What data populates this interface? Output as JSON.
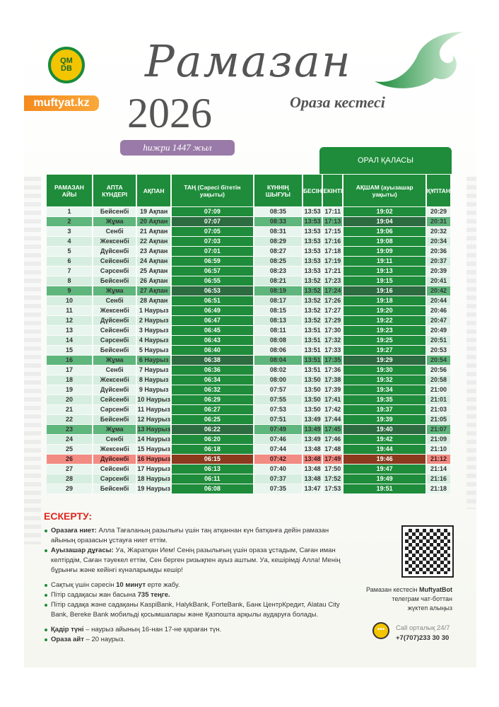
{
  "header": {
    "logo_text": "QMDB",
    "site": "muftyat.kz",
    "title": "Рамазан",
    "year": "2026",
    "subtitle": "Ораза кестесі",
    "hijri": "һижри 1447 жыл",
    "city": "ОРАЛ ҚАЛАСЫ"
  },
  "colors": {
    "green": "#1e8c3a",
    "friday": "#5fb67c",
    "highlight": "#f28b82",
    "accent": "#e0261f"
  },
  "table": {
    "columns": [
      "РАМАЗАН АЙЫ",
      "АПТА КҮНДЕРІ",
      "АҚПАН",
      "ТАҢ (Сәресі бітетін уақыты)",
      "КҮННІҢ ШЫҒУЫ",
      "БЕСІН",
      "ЕКІНТІ",
      "АҚШАМ (ауызашар уақыты)",
      "ҚҰПТАН"
    ],
    "rows": [
      [
        "1",
        "Бейсенбі",
        "19 Ақпан",
        "07:09",
        "08:35",
        "13:53",
        "17:11",
        "19:02",
        "20:29"
      ],
      [
        "2",
        "Жұма",
        "20 Ақпан",
        "07:07",
        "08:33",
        "13:53",
        "17:13",
        "19:04",
        "20:31"
      ],
      [
        "3",
        "Сенбі",
        "21 Ақпан",
        "07:05",
        "08:31",
        "13:53",
        "17:15",
        "19:06",
        "20:32"
      ],
      [
        "4",
        "Жексенбі",
        "22 Ақпан",
        "07:03",
        "08:29",
        "13:53",
        "17:16",
        "19:08",
        "20:34"
      ],
      [
        "5",
        "Дүйсенбі",
        "23 Ақпан",
        "07:01",
        "08:27",
        "13:53",
        "17:18",
        "19:09",
        "20:36"
      ],
      [
        "6",
        "Сейсенбі",
        "24 Ақпан",
        "06:59",
        "08:25",
        "13:53",
        "17:19",
        "19:11",
        "20:37"
      ],
      [
        "7",
        "Сәрсенбі",
        "25 Ақпан",
        "06:57",
        "08:23",
        "13:53",
        "17:21",
        "19:13",
        "20:39"
      ],
      [
        "8",
        "Бейсенбі",
        "26 Ақпан",
        "06:55",
        "08:21",
        "13:52",
        "17:23",
        "19:15",
        "20:41"
      ],
      [
        "9",
        "Жұма",
        "27 Ақпан",
        "06:53",
        "08:19",
        "13:52",
        "17:24",
        "19:16",
        "20:42"
      ],
      [
        "10",
        "Сенбі",
        "28 Ақпан",
        "06:51",
        "08:17",
        "13:52",
        "17:26",
        "19:18",
        "20:44"
      ],
      [
        "11",
        "Жексенбі",
        "1 Наурыз",
        "06:49",
        "08:15",
        "13:52",
        "17:27",
        "19:20",
        "20:46"
      ],
      [
        "12",
        "Дүйсенбі",
        "2 Наурыз",
        "06:47",
        "08:13",
        "13:52",
        "17:29",
        "19:22",
        "20:47"
      ],
      [
        "13",
        "Сейсенбі",
        "3 Наурыз",
        "06:45",
        "08:11",
        "13:51",
        "17:30",
        "19:23",
        "20:49"
      ],
      [
        "14",
        "Сәрсенбі",
        "4 Наурыз",
        "06:43",
        "08:08",
        "13:51",
        "17:32",
        "19:25",
        "20:51"
      ],
      [
        "15",
        "Бейсенбі",
        "5 Наурыз",
        "06:40",
        "08:06",
        "13:51",
        "17:33",
        "19:27",
        "20:53"
      ],
      [
        "16",
        "Жұма",
        "6 Наурыз",
        "06:38",
        "08:04",
        "13:51",
        "17:35",
        "19:29",
        "20:54"
      ],
      [
        "17",
        "Сенбі",
        "7 Наурыз",
        "06:36",
        "08:02",
        "13:51",
        "17:36",
        "19:30",
        "20:56"
      ],
      [
        "18",
        "Жексенбі",
        "8 Наурыз",
        "06:34",
        "08:00",
        "13:50",
        "17:38",
        "19:32",
        "20:58"
      ],
      [
        "19",
        "Дүйсенбі",
        "9 Наурыз",
        "06:32",
        "07:57",
        "13:50",
        "17:39",
        "19:34",
        "21:00"
      ],
      [
        "20",
        "Сейсенбі",
        "10 Наурыз",
        "06:29",
        "07:55",
        "13:50",
        "17:41",
        "19:35",
        "21:01"
      ],
      [
        "21",
        "Сәрсенбі",
        "11 Наурыз",
        "06:27",
        "07:53",
        "13:50",
        "17:42",
        "19:37",
        "21:03"
      ],
      [
        "22",
        "Бейсенбі",
        "12 Наурыз",
        "06:25",
        "07:51",
        "13:49",
        "17:44",
        "19:39",
        "21:05"
      ],
      [
        "23",
        "Жұма",
        "13 Наурыз",
        "06:22",
        "07:49",
        "13:49",
        "17:45",
        "19:40",
        "21:07"
      ],
      [
        "24",
        "Сенбі",
        "14 Наурыз",
        "06:20",
        "07:46",
        "13:49",
        "17:46",
        "19:42",
        "21:09"
      ],
      [
        "25",
        "Жексенбі",
        "15 Наурыз",
        "06:18",
        "07:44",
        "13:48",
        "17:48",
        "19:44",
        "21:10"
      ],
      [
        "26",
        "Дүйсенбі",
        "16 Наурыз",
        "06:15",
        "07:42",
        "13:48",
        "17:49",
        "19:46",
        "21:12"
      ],
      [
        "27",
        "Сейсенбі",
        "17 Наурыз",
        "06:13",
        "07:40",
        "13:48",
        "17:50",
        "19:47",
        "21:14"
      ],
      [
        "28",
        "Сәрсенбі",
        "18 Наурыз",
        "06:11",
        "07:37",
        "13:48",
        "17:52",
        "19:49",
        "21:16"
      ],
      [
        "29",
        "Бейсенбі",
        "19 Наурыз",
        "06:08",
        "07:35",
        "13:47",
        "17:53",
        "19:51",
        "21:18"
      ]
    ]
  },
  "notes": {
    "heading": "ЕСКЕРТУ:",
    "group1": [
      {
        "bold": "Оразаға ниет:",
        "text": " Алла Тағаланың разылығы үшін таң атқаннан күн батқанға дейін рамазан айының оразасын ұстауға ниет еттім."
      },
      {
        "bold": "Ауызашар дұғасы:",
        "text": " Уа, Жаратқан Ием! Сенің разылығың үшін ораза ұстадым, Саған иман келтірдім, Саған тәуекел еттім, Сен берген ризықпен ауыз аштым. Уа, кешірімді Алла! Менің бұрынғы және кейінгі күнәларымды кешір!"
      }
    ],
    "group2": [
      {
        "pre": "Сақтық үшін сәресін ",
        "bold": "10 минут",
        "post": " ерте жабу."
      },
      {
        "pre": "Пітір садақасы жан басына ",
        "bold": "735 теңге.",
        "post": ""
      },
      {
        "pre": "Пітір садақа және садақаны KaspiBank, HalykBank, ForteBank, Банк ЦентрКредит, Alatau City Bank, Bereke Bank мобильді қосымшалары және Қазпошта арқылы аударуға болады.",
        "bold": "",
        "post": ""
      }
    ],
    "group3": [
      {
        "bold": "Қадір түні",
        "text": " – наурыз айының 16-нан 17-не қараған түн."
      },
      {
        "bold": "Ораза айт",
        "text": " – 20 наурыз."
      }
    ]
  },
  "bot": {
    "pre": "Рамазан кестесін ",
    "name": "MuftyatBot",
    "line2": "телеграм чат-боттан",
    "line3": "жүктеп алыңыз"
  },
  "call": {
    "label": "Call орталық 24/7",
    "phone": "+7(707)233 30 30"
  }
}
